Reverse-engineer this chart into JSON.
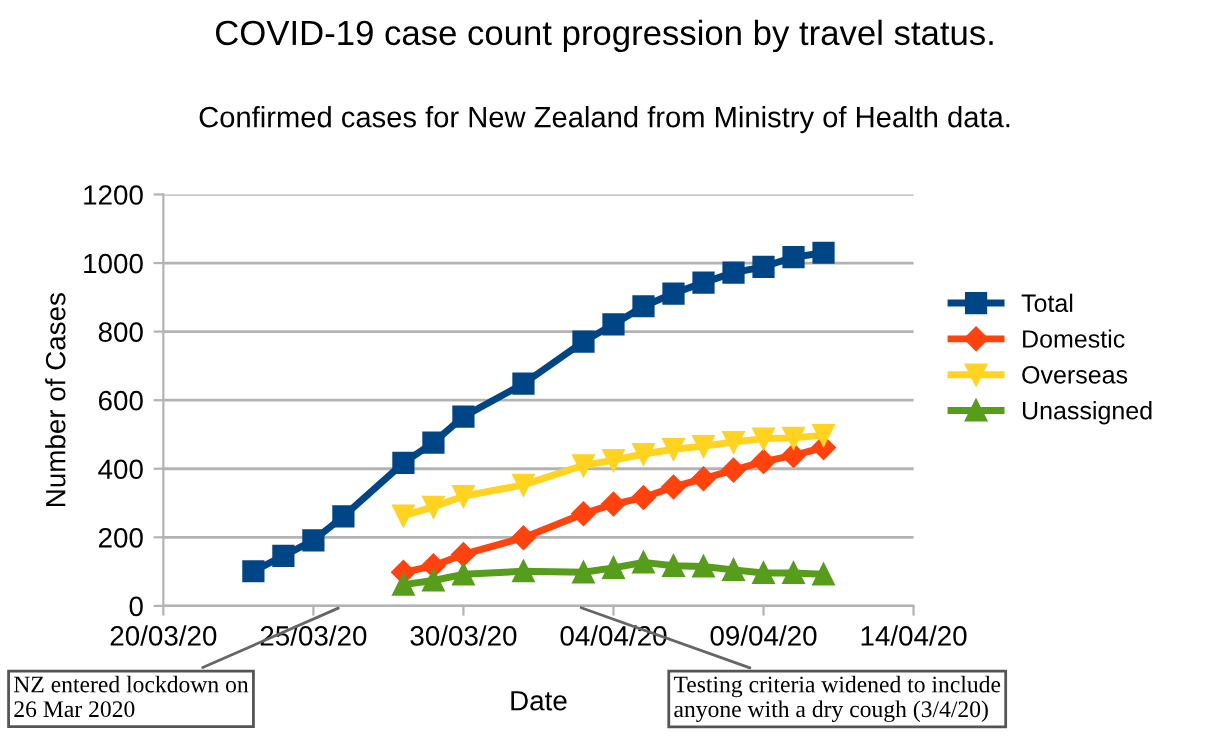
{
  "chart_data": {
    "type": "line",
    "title": "COVID-19 case count progression by travel status.",
    "subtitle": "Confirmed cases for New Zealand from Ministry of Health data.",
    "xlabel": "Date",
    "ylabel": "Number of Cases",
    "series": [
      {
        "name": "Total",
        "color": "#004586",
        "marker": "square",
        "x": [
          "2020-03-23",
          "2020-03-24",
          "2020-03-25",
          "2020-03-26",
          "2020-03-28",
          "2020-03-29",
          "2020-03-30",
          "2020-04-01",
          "2020-04-03",
          "2020-04-04",
          "2020-04-05",
          "2020-04-06",
          "2020-04-07",
          "2020-04-08",
          "2020-04-09",
          "2020-04-10",
          "2020-04-11"
        ],
        "values": [
          101,
          146,
          191,
          261,
          417,
          476,
          552,
          648,
          771,
          821,
          874,
          911,
          943,
          972,
          989,
          1017,
          1030
        ]
      },
      {
        "name": "Domestic",
        "color": "#ff420e",
        "marker": "diamond",
        "x": [
          "2020-03-28",
          "2020-03-29",
          "2020-03-30",
          "2020-04-01",
          "2020-04-03",
          "2020-04-04",
          "2020-04-05",
          "2020-04-06",
          "2020-04-07",
          "2020-04-08",
          "2020-04-09",
          "2020-04-10",
          "2020-04-11"
        ],
        "values": [
          98,
          117,
          150,
          199,
          269,
          297,
          316,
          347,
          371,
          396,
          421,
          439,
          462
        ]
      },
      {
        "name": "Overseas",
        "color": "#ffd320",
        "marker": "triangle_down",
        "x": [
          "2020-03-28",
          "2020-03-29",
          "2020-03-30",
          "2020-04-01",
          "2020-04-03",
          "2020-04-04",
          "2020-04-05",
          "2020-04-06",
          "2020-04-07",
          "2020-04-08",
          "2020-04-09",
          "2020-04-10",
          "2020-04-11"
        ],
        "values": [
          263,
          289,
          320,
          353,
          410,
          425,
          443,
          457,
          466,
          478,
          488,
          490,
          498
        ]
      },
      {
        "name": "Unassigned",
        "color": "#579d1c",
        "marker": "triangle",
        "x": [
          "2020-03-28",
          "2020-03-29",
          "2020-03-30",
          "2020-04-01",
          "2020-04-03",
          "2020-04-04",
          "2020-04-05",
          "2020-04-06",
          "2020-04-07",
          "2020-04-08",
          "2020-04-09",
          "2020-04-10",
          "2020-04-11"
        ],
        "values": [
          62,
          74,
          92,
          101,
          98,
          111,
          127,
          117,
          115,
          105,
          96,
          96,
          92
        ]
      }
    ],
    "xlim": [
      "2020-03-20",
      "2020-04-14"
    ],
    "xticks": [
      {
        "value": "2020-03-20",
        "label": "20/03/20"
      },
      {
        "value": "2020-03-25",
        "label": "25/03/20"
      },
      {
        "value": "2020-03-30",
        "label": "30/03/20"
      },
      {
        "value": "2020-04-04",
        "label": "04/04/20"
      },
      {
        "value": "2020-04-09",
        "label": "09/04/20"
      },
      {
        "value": "2020-04-14",
        "label": "14/04/20"
      }
    ],
    "ylim": [
      0,
      1200
    ],
    "yticks": [
      0,
      200,
      400,
      600,
      800,
      1000,
      1200
    ],
    "grid": "y",
    "legend": "right",
    "line_style": "solid",
    "annotations": [
      "NZ entered lockdown on\n26 Mar 2020",
      "Testing criteria widened to include\nanyone with a dry cough (3/4/20)"
    ]
  }
}
